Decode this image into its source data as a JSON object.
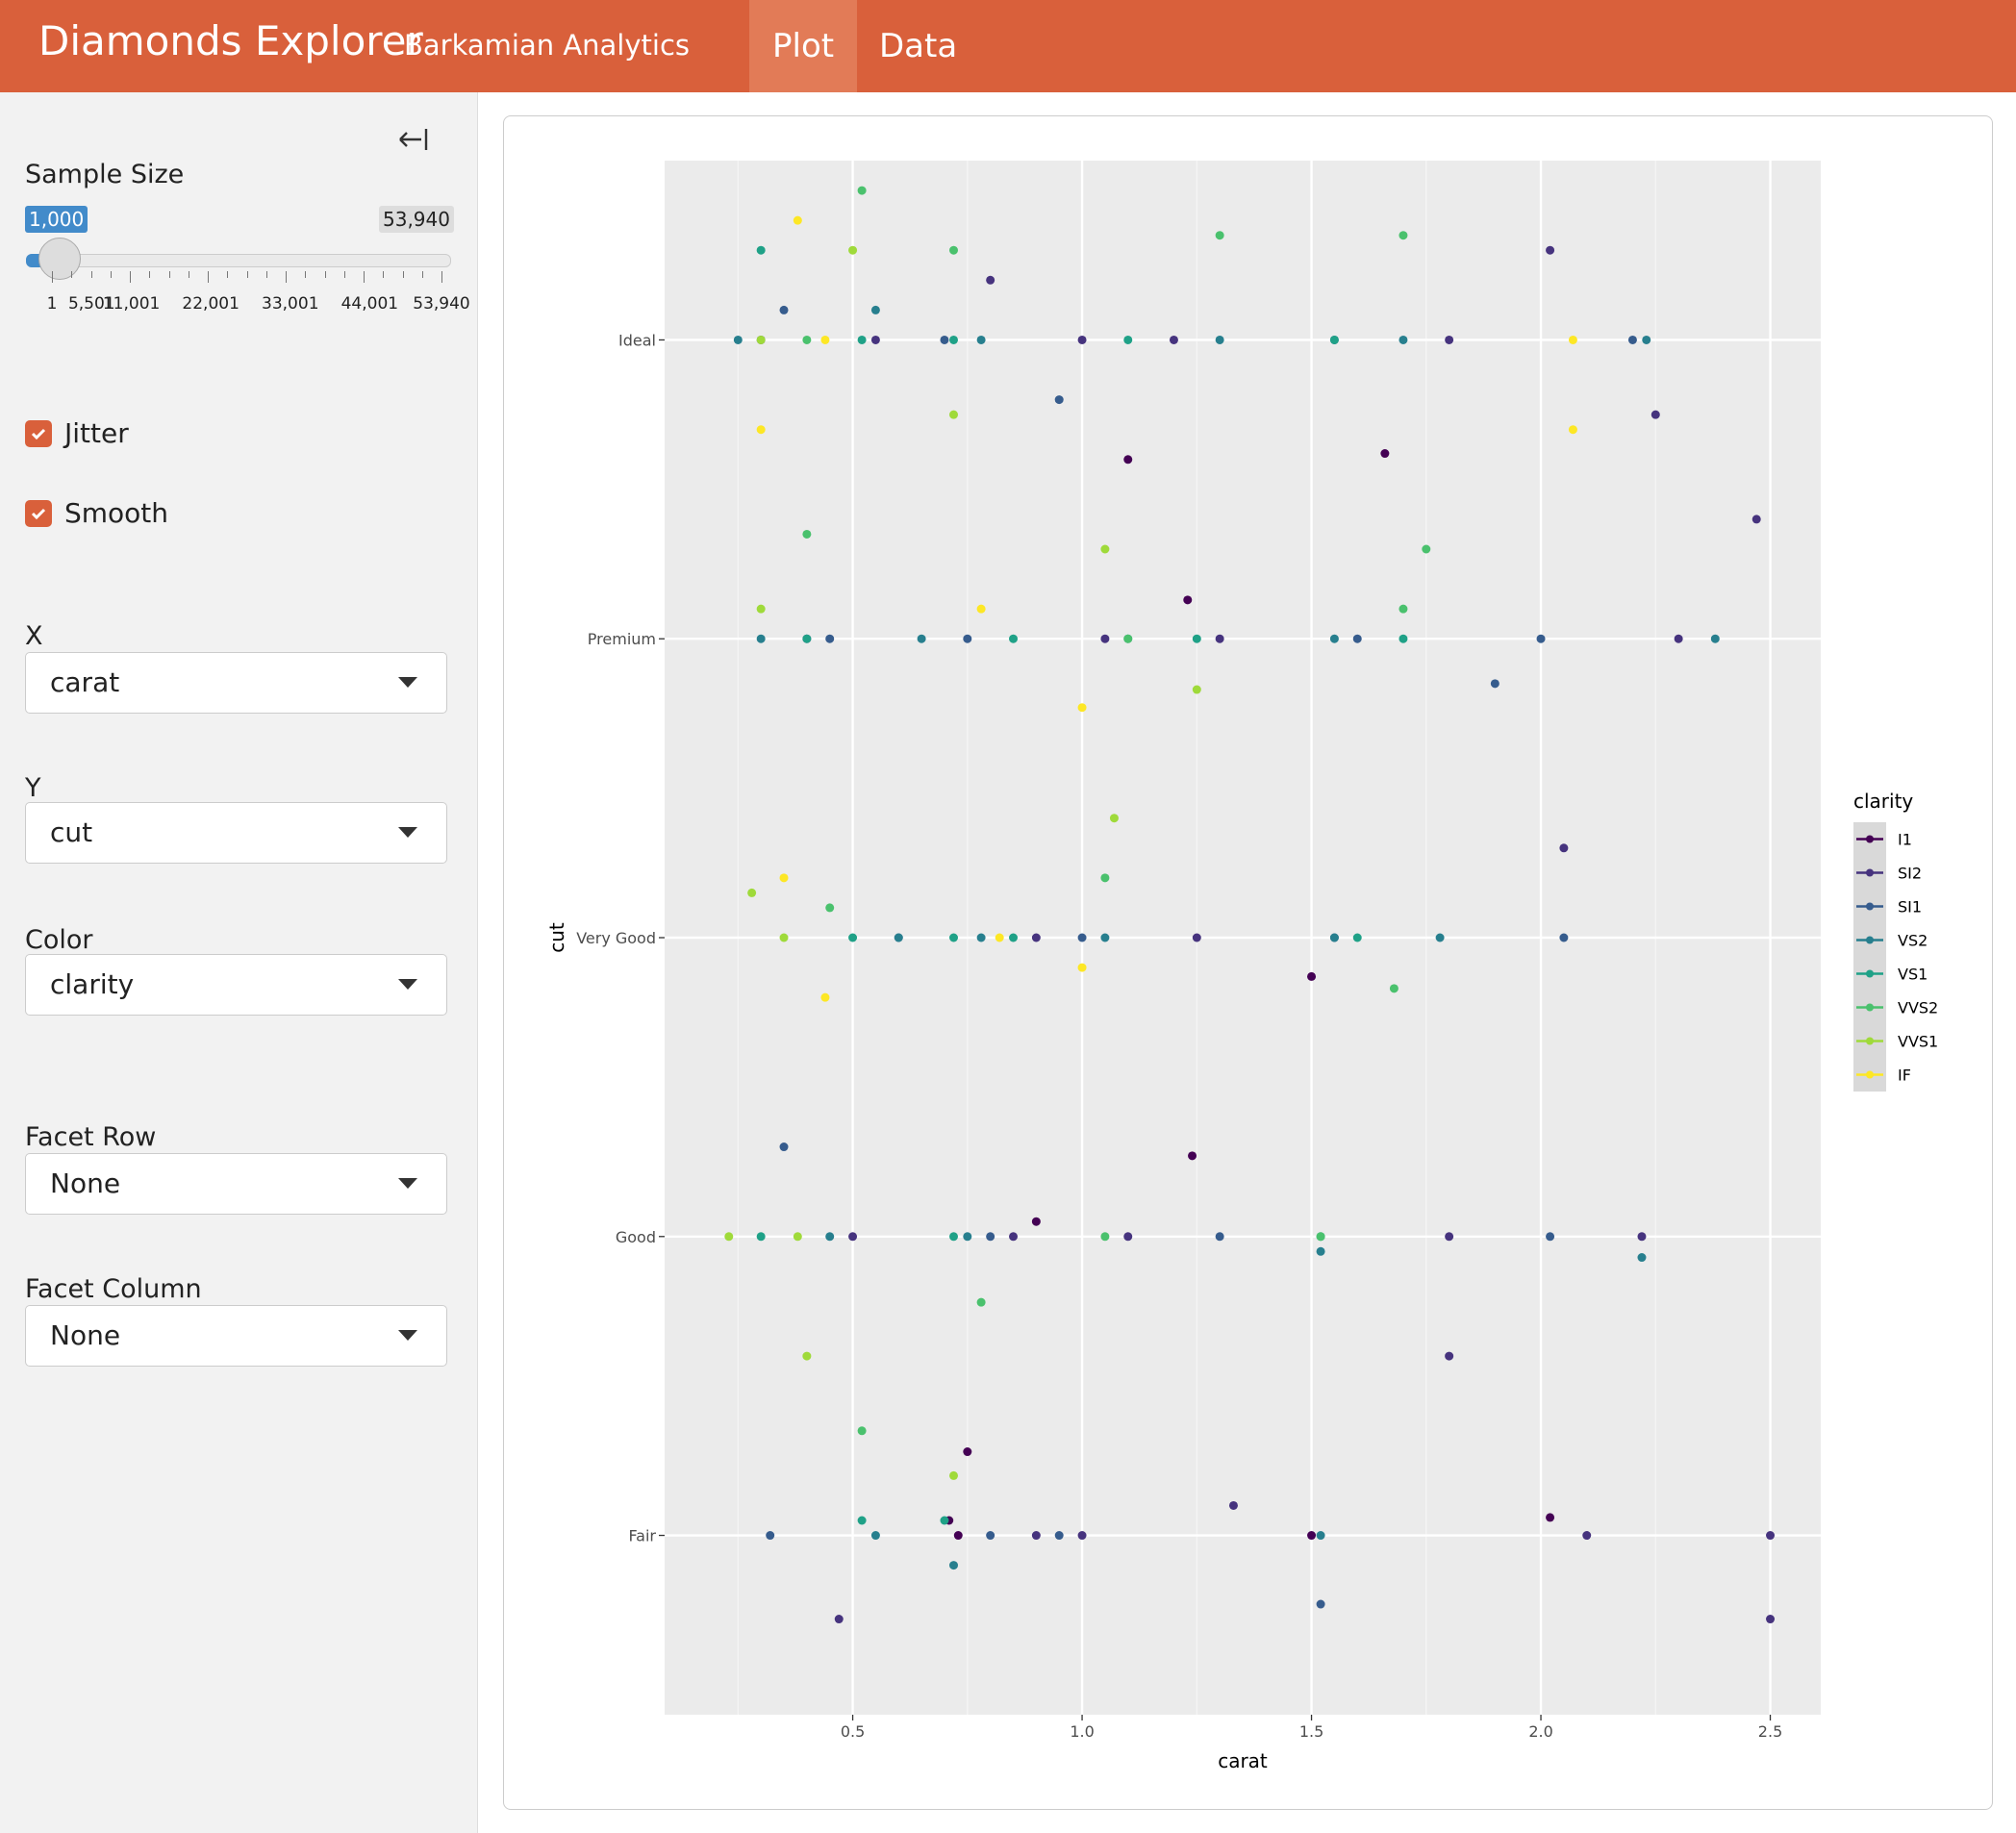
{
  "header": {
    "title": "Diamonds Explorer",
    "subtitle": "Barkamian Analytics",
    "tabs": [
      "Plot",
      "Data"
    ]
  },
  "sidebar": {
    "sample_size": {
      "label": "Sample Size",
      "min": 1,
      "max": 53940,
      "max_label": "53,940",
      "value": {
        "value": 1000,
        "label": "1,000"
      },
      "ticks": [
        {
          "value": 1,
          "label": "1"
        },
        {
          "value": 5501,
          "label": "5,501"
        },
        {
          "value": 11001,
          "label": "11,001"
        },
        {
          "value": 22001,
          "label": "22,001"
        },
        {
          "value": 33001,
          "label": "33,001"
        },
        {
          "value": 44001,
          "label": "44,001"
        },
        {
          "value": 53940,
          "label": "53,940"
        }
      ]
    },
    "checkboxes": [
      "Jitter",
      "Smooth"
    ],
    "selects": [
      {
        "label": "X",
        "value": "carat"
      },
      {
        "label": "Y",
        "value": "cut"
      },
      {
        "label": "Color",
        "value": "clarity"
      },
      {
        "label": "Facet Row",
        "value": "None"
      },
      {
        "label": "Facet Column",
        "value": "None"
      }
    ]
  },
  "chart_data": {
    "type": "scatter",
    "x_label": "carat",
    "y_label": "cut",
    "legend_title": "clarity",
    "legend": "right",
    "grid": true,
    "xlim": [
      0.09,
      2.61
    ],
    "xticks": [
      0.5,
      {
        "value": 1,
        "label": "1.0"
      },
      1.5,
      {
        "value": 2,
        "label": "2.0"
      },
      2.5
    ],
    "ylim": [
      0.4,
      5.6
    ],
    "yticks": [
      {
        "value": 1,
        "label": "Fair"
      },
      {
        "value": 2,
        "label": "Good"
      },
      {
        "value": 3,
        "label": "Very Good"
      },
      {
        "value": 4,
        "label": "Premium"
      },
      {
        "value": 5,
        "label": "Ideal"
      }
    ],
    "series": [
      {
        "name": "I1",
        "color": "#440154",
        "x": [
          0.73,
          0.71,
          0.75,
          1.66,
          2.02,
          1.1,
          1.5,
          1.23,
          0.9,
          1.24,
          1.5
        ],
        "y": [
          1.0,
          1.05,
          1.28,
          4.62,
          1.06,
          4.6,
          2.87,
          4.13,
          2.05,
          2.27,
          1.0
        ]
      },
      {
        "name": "SI2",
        "color": "#46337e",
        "x": [
          0.3,
          0.55,
          0.8,
          1.0,
          1.2,
          1.8,
          2.02,
          2.25,
          0.4,
          1.05,
          1.3,
          2.3,
          2.47,
          0.9,
          1.25,
          2.05,
          0.5,
          0.85,
          1.1,
          1.8,
          2.22,
          1.8,
          0.9,
          1.0,
          1.33,
          2.5,
          2.5,
          0.47,
          2.1
        ],
        "y": [
          5.0,
          5.0,
          5.2,
          5.0,
          5.0,
          5.0,
          5.3,
          4.75,
          4.0,
          4.0,
          4.0,
          4.0,
          4.4,
          3.0,
          3.0,
          3.3,
          2.0,
          2.0,
          2.0,
          2.0,
          2.0,
          1.6,
          1.0,
          1.0,
          1.1,
          1.0,
          0.72,
          0.72,
          1.0
        ]
      },
      {
        "name": "SI1",
        "color": "#365c8d",
        "x": [
          0.35,
          0.7,
          0.95,
          1.55,
          2.2,
          0.45,
          0.75,
          1.6,
          2.0,
          1.9,
          0.6,
          1.0,
          1.55,
          2.05,
          0.8,
          0.35,
          1.3,
          2.02,
          0.8,
          0.95,
          1.52,
          0.32
        ],
        "y": [
          5.1,
          5.0,
          4.8,
          5.0,
          5.0,
          4.0,
          4.0,
          4.0,
          4.0,
          3.85,
          3.0,
          3.0,
          3.0,
          3.0,
          2.0,
          2.3,
          2.0,
          2.0,
          1.0,
          1.0,
          0.77,
          1.0
        ]
      },
      {
        "name": "VS2",
        "color": "#277f8e",
        "x": [
          0.25,
          0.55,
          0.78,
          1.3,
          1.7,
          2.23,
          0.3,
          0.65,
          1.1,
          1.55,
          2.38,
          0.6,
          0.78,
          1.05,
          1.55,
          1.78,
          0.45,
          0.75,
          1.52,
          2.22,
          0.55,
          0.72,
          1.52
        ],
        "y": [
          5.0,
          5.1,
          5.0,
          5.0,
          5.0,
          5.0,
          4.0,
          4.0,
          4.0,
          4.0,
          4.0,
          3.0,
          3.0,
          3.0,
          3.0,
          3.0,
          2.0,
          2.0,
          1.95,
          1.93,
          1.0,
          0.9,
          1.0
        ]
      },
      {
        "name": "VS1",
        "color": "#1fa187",
        "x": [
          0.3,
          0.52,
          0.72,
          1.1,
          1.55,
          0.4,
          0.85,
          1.25,
          1.7,
          0.5,
          0.72,
          0.85,
          1.6,
          0.3,
          0.72,
          1.52,
          0.52,
          0.7
        ],
        "y": [
          5.3,
          5.0,
          5.0,
          5.0,
          5.0,
          4.0,
          4.0,
          4.0,
          4.0,
          3.0,
          3.0,
          3.0,
          3.0,
          2.0,
          2.0,
          2.0,
          1.05,
          1.05
        ]
      },
      {
        "name": "VVS2",
        "color": "#4ac16d",
        "x": [
          0.4,
          0.52,
          0.72,
          1.3,
          1.7,
          0.4,
          1.1,
          1.7,
          1.75,
          0.45,
          1.05,
          1.68,
          1.05,
          1.52,
          0.78,
          0.52
        ],
        "y": [
          5.0,
          5.5,
          5.3,
          5.35,
          5.35,
          4.35,
          4.0,
          4.1,
          4.3,
          3.1,
          3.2,
          2.83,
          2.0,
          2.0,
          1.78,
          1.35
        ]
      },
      {
        "name": "VVS1",
        "color": "#9fda3a",
        "x": [
          0.3,
          0.5,
          0.72,
          0.3,
          1.25,
          0.28,
          0.35,
          1.07,
          0.23,
          0.38,
          0.4,
          0.72,
          1.05
        ],
        "y": [
          5.0,
          5.3,
          4.75,
          4.1,
          3.83,
          3.15,
          3.0,
          3.4,
          2.0,
          2.0,
          1.6,
          1.2,
          4.3
        ]
      },
      {
        "name": "IF",
        "color": "#fde725",
        "x": [
          0.38,
          0.3,
          0.44,
          2.07,
          2.07,
          0.78,
          0.35,
          0.82,
          0.44,
          1.0,
          1.0
        ],
        "y": [
          5.4,
          4.7,
          5.0,
          4.7,
          5.0,
          4.1,
          3.2,
          3.0,
          2.8,
          2.9,
          3.77
        ]
      }
    ]
  }
}
